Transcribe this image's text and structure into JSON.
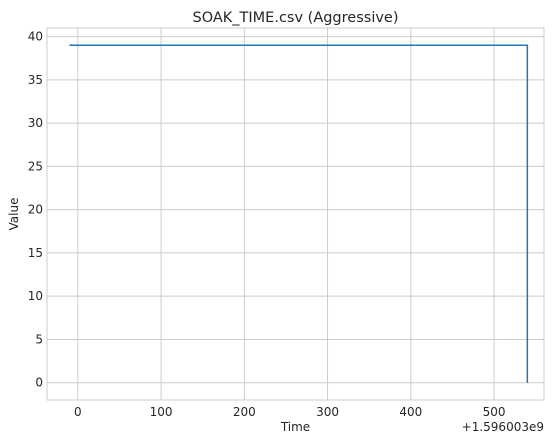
{
  "chart_data": {
    "type": "line",
    "title": "SOAK_TIME.csv (Aggressive)",
    "xlabel": "Time",
    "ylabel": "Value",
    "x_offset_label": "+1.596003e9",
    "xlim": [
      -37,
      560
    ],
    "ylim": [
      -2,
      41
    ],
    "grid": true,
    "xticks": [
      0,
      100,
      200,
      300,
      400,
      500
    ],
    "yticks": [
      0,
      5,
      10,
      15,
      20,
      25,
      30,
      35,
      40
    ],
    "series": [
      {
        "color": "#1f77b4",
        "x": [
          -10,
          540,
          540
        ],
        "y": [
          39,
          39,
          0
        ]
      }
    ]
  }
}
